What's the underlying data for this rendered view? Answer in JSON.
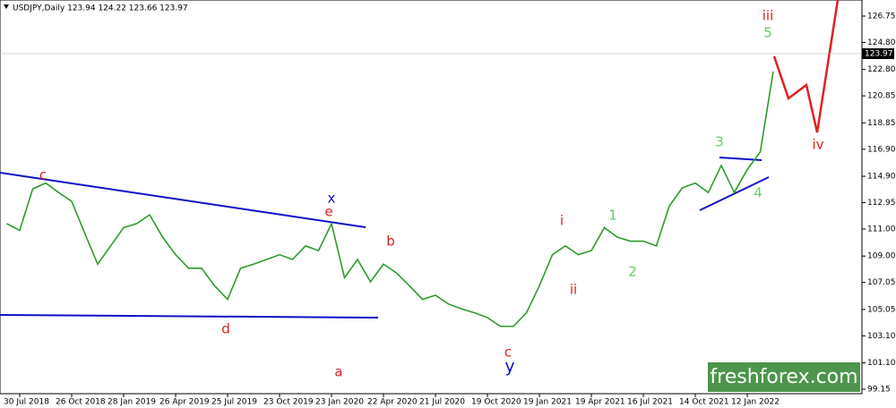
{
  "chart_data": {
    "type": "line",
    "title": "USDJPY,Daily  123.94 124.22 123.66 123.97",
    "categories": [
      null,
      "30 Jul 2018",
      null,
      null,
      null,
      "26 Oct 2018",
      null,
      null,
      null,
      "28 Jan 2019",
      null,
      null,
      null,
      "26 Apr 2019",
      null,
      null,
      null,
      "25 Jul 2019",
      null,
      null,
      null,
      "23 Oct 2019",
      null,
      null,
      null,
      "23 Jan 2020",
      null,
      null,
      null,
      "22 Apr 2020",
      null,
      null,
      null,
      "21 Jul 2020",
      null,
      null,
      null,
      "19 Oct 2020",
      null,
      null,
      null,
      "19 Jan 2021",
      null,
      null,
      null,
      "19 Apr 2021",
      null,
      null,
      null,
      "16 Jul 2021",
      null,
      null,
      null,
      "14 Oct 2021",
      null,
      null,
      null,
      "12 Jan 2022",
      null,
      null
    ],
    "values": [
      111.4,
      110.9,
      113.97,
      114.4,
      113.7,
      113.05,
      110.7,
      108.4,
      109.75,
      111.1,
      111.4,
      112.05,
      110.4,
      109.1,
      108.1,
      108.1,
      106.8,
      105.8,
      108.1,
      108.4,
      108.75,
      109.1,
      108.75,
      109.75,
      109.4,
      111.4,
      107.4,
      108.75,
      107.1,
      108.4,
      107.75,
      106.8,
      105.8,
      106.1,
      105.45,
      105.1,
      104.8,
      104.45,
      103.8,
      103.8,
      104.8,
      106.8,
      109.1,
      109.75,
      109.1,
      109.4,
      111.1,
      110.4,
      110.1,
      110.1,
      109.75,
      112.7,
      114.05,
      114.4,
      113.7,
      115.7,
      113.7,
      115.4,
      116.7,
      122.65
    ],
    "color": "#2e9a2e",
    "last_price": 123.97,
    "ylim": [
      98.82,
      127.94
    ],
    "yticks": [
      126.75,
      {
        "value": 124.8,
        "label": "124.80"
      },
      {
        "value": 122.8,
        "label": "122.80"
      },
      120.85,
      118.85,
      {
        "value": 116.9,
        "label": "116.90"
      },
      {
        "value": 114.9,
        "label": "114.90"
      },
      112.95,
      {
        "value": 111,
        "label": "111.00"
      },
      {
        "value": 109,
        "label": "109.00"
      },
      107.05,
      105.05,
      {
        "value": 103.1,
        "label": "103.10"
      },
      {
        "value": 101.1,
        "label": "101.10"
      },
      99.15
    ],
    "annotations": [
      "c",
      "x",
      "e",
      "b",
      "d",
      "a",
      "c",
      "y",
      "i",
      "ii",
      "1",
      "2",
      "3",
      "4",
      "5",
      "iii",
      "iv"
    ],
    "watermark": "freshforex.com"
  }
}
